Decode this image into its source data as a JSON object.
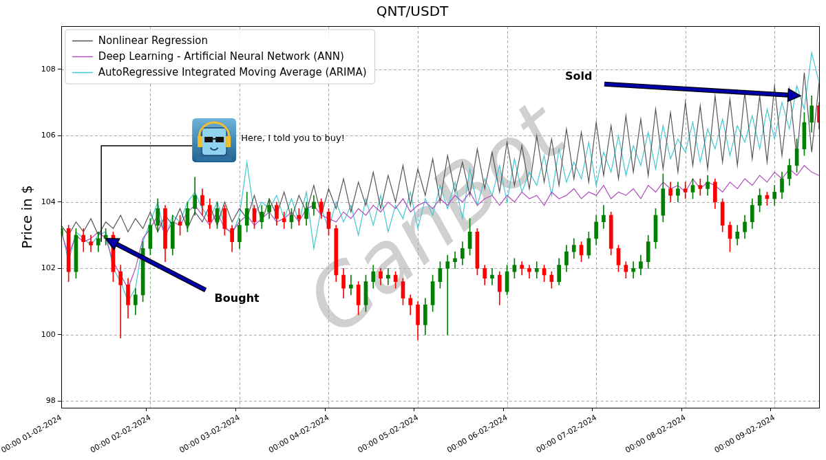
{
  "chart_data": {
    "type": "candlestick",
    "title": "QNT/USDT",
    "y_label": "Price in $",
    "categories": [
      "00:00 01-02-2024",
      null,
      null,
      null,
      null,
      null,
      null,
      null,
      null,
      null,
      null,
      null,
      "00:00 02-02-2024",
      null,
      null,
      null,
      null,
      null,
      null,
      null,
      null,
      null,
      null,
      null,
      "00:00 03-02-2024",
      null,
      null,
      null,
      null,
      null,
      null,
      null,
      null,
      null,
      null,
      null,
      "00:00 04-02-2024",
      null,
      null,
      null,
      null,
      null,
      null,
      null,
      null,
      null,
      null,
      null,
      "00:00 05-02-2024",
      null,
      null,
      null,
      null,
      null,
      null,
      null,
      null,
      null,
      null,
      null,
      "00:00 06-02-2024",
      null,
      null,
      null,
      null,
      null,
      null,
      null,
      null,
      null,
      null,
      null,
      "00:00 07-02-2024",
      null,
      null,
      null,
      null,
      null,
      null,
      null,
      null,
      null,
      null,
      null,
      "00:00 08-02-2024",
      null,
      null,
      null,
      null,
      null,
      null,
      null,
      null,
      null,
      null,
      null,
      "00:00 09-02-2024",
      null,
      null,
      null,
      null,
      null,
      null
    ],
    "candles": {
      "open": [
        103.0,
        103.2,
        101.9,
        103.0,
        102.8,
        102.7,
        102.9,
        103.0,
        101.9,
        101.5,
        100.9,
        101.2,
        102.6,
        103.3,
        103.8,
        102.6,
        103.4,
        103.3,
        103.8,
        104.2,
        103.9,
        103.4,
        103.8,
        103.2,
        102.8,
        103.3,
        103.8,
        103.4,
        103.7,
        103.9,
        103.5,
        103.4,
        103.6,
        103.5,
        103.8,
        104.0,
        103.7,
        103.2,
        101.8,
        101.4,
        101.5,
        100.9,
        101.6,
        101.9,
        101.7,
        101.8,
        101.6,
        101.1,
        100.9,
        100.3,
        100.9,
        101.6,
        102.0,
        102.2,
        102.3,
        102.6,
        103.1,
        102.0,
        101.7,
        101.8,
        101.3,
        101.9,
        102.1,
        102.0,
        101.9,
        102.0,
        101.8,
        101.6,
        102.1,
        102.5,
        102.7,
        102.4,
        102.9,
        103.4,
        103.6,
        102.6,
        102.1,
        101.9,
        102.0,
        102.2,
        102.8,
        103.6,
        104.4,
        104.2,
        104.4,
        104.3,
        104.5,
        104.4,
        104.6,
        104.0,
        103.3,
        102.9,
        103.1,
        103.4,
        103.9,
        104.2,
        104.1,
        104.3,
        104.7,
        105.1,
        105.6,
        106.4,
        106.9
      ],
      "high": [
        103.5,
        103.3,
        103.2,
        103.2,
        103.0,
        103.1,
        103.2,
        103.1,
        102.1,
        101.7,
        101.4,
        102.8,
        103.5,
        104.1,
        103.9,
        103.6,
        103.6,
        104.0,
        104.75,
        104.4,
        104.1,
        104.0,
        103.9,
        103.3,
        103.5,
        104.3,
        103.9,
        103.9,
        104.1,
        104.0,
        103.7,
        103.8,
        103.8,
        104.0,
        104.2,
        104.1,
        103.8,
        103.3,
        102.0,
        101.8,
        101.6,
        101.8,
        102.1,
        102.0,
        102.0,
        101.9,
        101.7,
        101.2,
        101.0,
        101.1,
        101.8,
        102.2,
        102.4,
        102.5,
        102.8,
        103.5,
        103.2,
        102.1,
        102.0,
        101.9,
        102.1,
        102.3,
        102.2,
        102.1,
        102.2,
        102.1,
        101.9,
        102.3,
        102.7,
        102.9,
        102.8,
        103.1,
        103.6,
        103.9,
        103.7,
        102.7,
        102.2,
        102.2,
        102.4,
        103.0,
        103.8,
        104.85,
        104.6,
        104.6,
        104.6,
        104.7,
        104.7,
        104.8,
        104.7,
        104.1,
        103.4,
        103.3,
        103.6,
        104.1,
        104.4,
        104.3,
        104.5,
        104.9,
        105.3,
        105.9,
        106.7,
        107.2,
        107.0
      ],
      "low": [
        102.8,
        101.6,
        101.7,
        102.5,
        102.5,
        102.5,
        102.7,
        101.6,
        99.9,
        100.5,
        100.6,
        101.0,
        102.4,
        103.1,
        102.2,
        102.4,
        103.0,
        103.1,
        103.6,
        103.6,
        103.2,
        103.2,
        103.0,
        102.5,
        102.6,
        103.1,
        103.2,
        103.2,
        103.5,
        103.3,
        103.2,
        103.2,
        103.3,
        103.3,
        103.6,
        103.5,
        103.0,
        101.6,
        101.1,
        101.2,
        100.6,
        100.7,
        101.4,
        101.5,
        101.5,
        101.4,
        100.9,
        100.6,
        99.85,
        100.0,
        100.7,
        101.4,
        100.0,
        102.0,
        102.1,
        102.4,
        101.8,
        101.5,
        101.5,
        100.9,
        101.2,
        101.7,
        101.8,
        101.7,
        101.7,
        101.6,
        101.4,
        101.5,
        101.9,
        102.3,
        102.2,
        102.3,
        102.7,
        103.2,
        102.4,
        101.9,
        101.7,
        101.7,
        101.8,
        102.0,
        102.6,
        103.4,
        104.0,
        104.0,
        104.1,
        104.1,
        104.2,
        104.2,
        103.8,
        103.1,
        102.5,
        102.7,
        102.9,
        103.2,
        103.7,
        103.9,
        103.9,
        104.1,
        104.5,
        104.9,
        105.4,
        106.1,
        106.2
      ],
      "close": [
        103.2,
        101.9,
        103.0,
        102.8,
        102.7,
        102.9,
        103.0,
        101.9,
        101.5,
        100.9,
        101.2,
        102.6,
        103.3,
        103.8,
        102.6,
        103.4,
        103.3,
        103.8,
        104.2,
        103.9,
        103.4,
        103.8,
        103.2,
        102.8,
        103.3,
        103.8,
        103.4,
        103.7,
        103.9,
        103.5,
        103.4,
        103.6,
        103.5,
        103.8,
        104.0,
        103.7,
        103.2,
        101.8,
        101.4,
        101.5,
        100.9,
        101.6,
        101.9,
        101.7,
        101.8,
        101.6,
        101.1,
        100.9,
        100.3,
        100.9,
        101.6,
        102.0,
        102.2,
        102.3,
        102.6,
        103.1,
        102.0,
        101.7,
        101.8,
        101.3,
        101.9,
        102.1,
        102.0,
        101.9,
        102.0,
        101.8,
        101.6,
        102.1,
        102.5,
        102.7,
        102.4,
        102.9,
        103.4,
        103.6,
        102.6,
        102.1,
        101.9,
        102.0,
        102.2,
        102.8,
        103.6,
        104.4,
        104.2,
        104.4,
        104.3,
        104.5,
        104.4,
        104.6,
        104.0,
        103.3,
        102.9,
        103.1,
        103.4,
        103.9,
        104.2,
        104.1,
        104.3,
        104.7,
        105.1,
        105.6,
        106.4,
        106.9,
        106.4
      ],
      "colors": [
        "green",
        "red",
        "green",
        "red",
        "red",
        "green",
        "green",
        "red",
        "red",
        "red",
        "green",
        "green",
        "green",
        "green",
        "red",
        "green",
        "red",
        "green",
        "green",
        "red",
        "red",
        "green",
        "red",
        "red",
        "green",
        "green",
        "red",
        "green",
        "green",
        "red",
        "red",
        "green",
        "red",
        "green",
        "green",
        "red",
        "red",
        "red",
        "red",
        "green",
        "red",
        "green",
        "green",
        "red",
        "green",
        "red",
        "red",
        "red",
        "red",
        "green",
        "green",
        "green",
        "green",
        "green",
        "green",
        "green",
        "red",
        "red",
        "green",
        "red",
        "green",
        "green",
        "red",
        "red",
        "green",
        "red",
        "red",
        "green",
        "green",
        "green",
        "red",
        "green",
        "green",
        "green",
        "red",
        "red",
        "red",
        "green",
        "green",
        "green",
        "green",
        "green",
        "red",
        "green",
        "red",
        "green",
        "red",
        "green",
        "red",
        "red",
        "red",
        "green",
        "green",
        "green",
        "green",
        "red",
        "green",
        "green",
        "green",
        "green",
        "green",
        "green",
        "red"
      ]
    },
    "series": [
      {
        "name": "Nonlinear Regression",
        "color": "#555555",
        "type": "line",
        "values": [
          103.3,
          103.0,
          103.4,
          103.1,
          103.5,
          103.0,
          103.4,
          103.2,
          103.6,
          103.1,
          103.5,
          103.2,
          103.7,
          103.1,
          103.6,
          103.3,
          103.8,
          103.2,
          103.7,
          103.4,
          103.9,
          103.3,
          104.0,
          103.4,
          103.8,
          103.5,
          104.2,
          103.4,
          104.1,
          103.6,
          104.3,
          103.5,
          104.2,
          103.7,
          104.5,
          103.6,
          104.4,
          103.8,
          104.7,
          103.7,
          104.6,
          103.9,
          104.9,
          103.8,
          104.8,
          104.0,
          105.1,
          103.9,
          105.0,
          104.2,
          105.3,
          104.0,
          105.4,
          104.3,
          105.2,
          104.2,
          105.6,
          104.4,
          105.5,
          104.3,
          105.8,
          104.5,
          105.7,
          104.4,
          106.0,
          104.6,
          105.9,
          104.5,
          106.2,
          104.7,
          106.1,
          104.6,
          106.4,
          104.8,
          106.3,
          104.7,
          106.6,
          104.9,
          106.5,
          104.8,
          106.8,
          105.0,
          106.7,
          104.9,
          107.0,
          105.1,
          106.9,
          105.0,
          107.2,
          105.2,
          107.1,
          105.1,
          107.3,
          105.3,
          107.2,
          105.2,
          107.5,
          105.4,
          107.4,
          105.3,
          107.9,
          105.5,
          107.6
        ]
      },
      {
        "name": "Deep Learning - Artificial Neural Network (ANN)",
        "color": "#b04cc0",
        "type": "line",
        "values": [
          103.1,
          102.4,
          103.0,
          102.8,
          102.9,
          103.1,
          102.9,
          102.2,
          101.8,
          101.4,
          102.0,
          102.9,
          103.2,
          103.6,
          103.0,
          103.4,
          103.3,
          103.7,
          103.9,
          103.6,
          103.3,
          103.7,
          103.2,
          103.1,
          103.4,
          103.6,
          103.3,
          103.5,
          103.7,
          103.4,
          103.5,
          103.7,
          103.4,
          103.8,
          103.9,
          103.6,
          103.5,
          103.4,
          103.7,
          103.5,
          103.8,
          103.6,
          103.9,
          103.7,
          104.0,
          103.8,
          104.1,
          103.7,
          103.9,
          104.0,
          103.8,
          104.1,
          103.9,
          104.2,
          104.0,
          104.3,
          103.9,
          104.1,
          104.2,
          103.9,
          104.2,
          104.0,
          104.3,
          104.1,
          104.2,
          103.9,
          104.3,
          104.1,
          104.2,
          104.4,
          104.1,
          104.3,
          104.2,
          104.5,
          104.1,
          104.3,
          104.2,
          104.4,
          104.1,
          104.5,
          104.3,
          104.6,
          104.4,
          104.5,
          104.3,
          104.7,
          104.4,
          104.6,
          104.5,
          104.3,
          104.6,
          104.4,
          104.7,
          104.5,
          104.8,
          104.6,
          104.9,
          104.7,
          105.0,
          104.8,
          105.1,
          104.9,
          104.8
        ]
      },
      {
        "name": "AutoRegressive Integrated Moving Average (ARIMA)",
        "color": "#3fc8d2",
        "type": "line",
        "values": [
          103.2,
          102.2,
          103.1,
          102.9,
          102.7,
          103.0,
          103.1,
          102.0,
          101.6,
          101.0,
          101.4,
          102.8,
          103.4,
          104.0,
          102.9,
          103.6,
          103.4,
          104.0,
          104.3,
          103.8,
          103.5,
          104.0,
          103.3,
          103.0,
          103.6,
          105.2,
          103.6,
          104.0,
          103.8,
          104.2,
          103.5,
          104.1,
          103.4,
          104.3,
          102.6,
          103.8,
          103.2,
          104.0,
          103.4,
          103.9,
          103.0,
          104.1,
          103.3,
          104.2,
          103.1,
          103.9,
          103.5,
          104.3,
          103.2,
          104.1,
          103.6,
          104.5,
          103.8,
          104.6,
          103.5,
          105.0,
          103.9,
          104.7,
          104.2,
          105.1,
          104.0,
          105.3,
          104.3,
          104.9,
          104.5,
          105.4,
          104.2,
          105.6,
          104.6,
          105.2,
          104.7,
          105.8,
          104.5,
          105.5,
          104.9,
          106.0,
          104.8,
          105.7,
          105.1,
          106.1,
          105.0,
          106.3,
          105.3,
          105.9,
          105.5,
          106.4,
          105.2,
          106.2,
          105.6,
          106.5,
          105.4,
          106.3,
          105.8,
          106.6,
          105.6,
          106.8,
          105.9,
          107.0,
          106.2,
          107.5,
          106.8,
          108.5,
          107.6
        ]
      }
    ],
    "ylim": [
      97.8,
      109.3
    ],
    "yticks": [
      98,
      100,
      102,
      104,
      106,
      108
    ],
    "grid": true,
    "legend": "upper left",
    "annotations": [
      {
        "text": "Bought",
        "x": 6,
        "y": 102.9
      },
      {
        "text": "Sold",
        "x": 99.5,
        "y": 107.2
      },
      {
        "text": "Here, I told you to buy!",
        "x": 5.4,
        "y": 102.8
      }
    ],
    "watermark": "CanBot"
  }
}
